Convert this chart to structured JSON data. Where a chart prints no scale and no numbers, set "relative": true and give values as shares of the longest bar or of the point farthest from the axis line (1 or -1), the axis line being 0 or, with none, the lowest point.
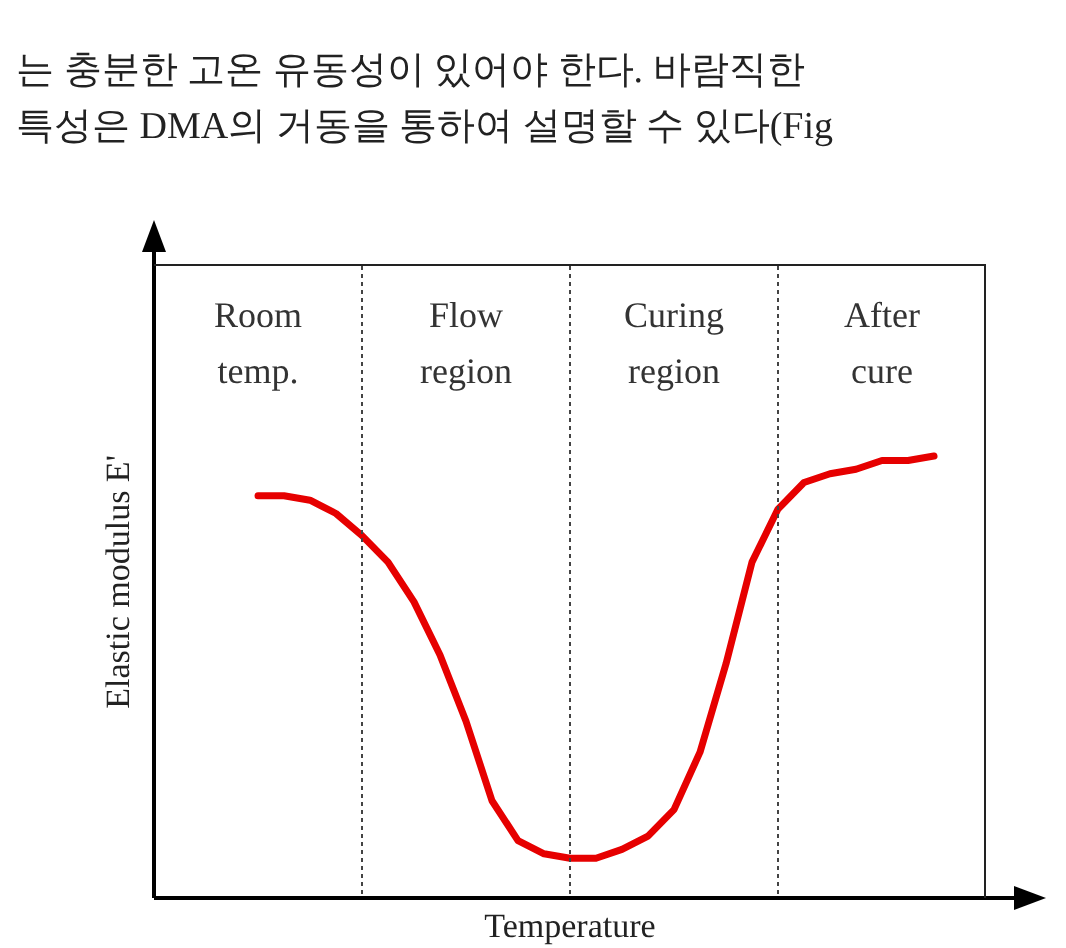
{
  "chart_data": {
    "type": "line",
    "title": "는 충분한 고온 유동성이 있어야 한다. 바람직한",
    "subtitle": "특성은 DMA의 거동을 통하여 설명할 수 있다(Fig",
    "annotations": [
      "Room temp.",
      "Flow region",
      "Curing region",
      "After cure"
    ],
    "xlabel": "Temperature",
    "ylabel": "Elastic modulus E'",
    "relative": true,
    "tick_labels": false,
    "grid": "x",
    "marker": "none",
    "categories": [
      null,
      null,
      null,
      null,
      null,
      null,
      null,
      null,
      null,
      null,
      null,
      null,
      null,
      null,
      null,
      null,
      null,
      null,
      null,
      null,
      null,
      null,
      null,
      null,
      null,
      null,
      null,
      null,
      null,
      null,
      null,
      null,
      null
    ],
    "series": [
      {
        "color": "#e60000",
        "values": [
          null,
          null,
          null,
          null,
          0.91,
          0.91,
          0.9,
          0.87,
          0.82,
          0.76,
          0.67,
          0.55,
          0.4,
          0.22,
          0.13,
          0.1,
          0.09,
          0.09,
          0.11,
          0.14,
          0.2,
          0.33,
          0.53,
          0.76,
          0.88,
          0.94,
          0.96,
          0.97,
          0.99,
          0.99,
          1.0,
          null,
          null
        ]
      }
    ]
  }
}
